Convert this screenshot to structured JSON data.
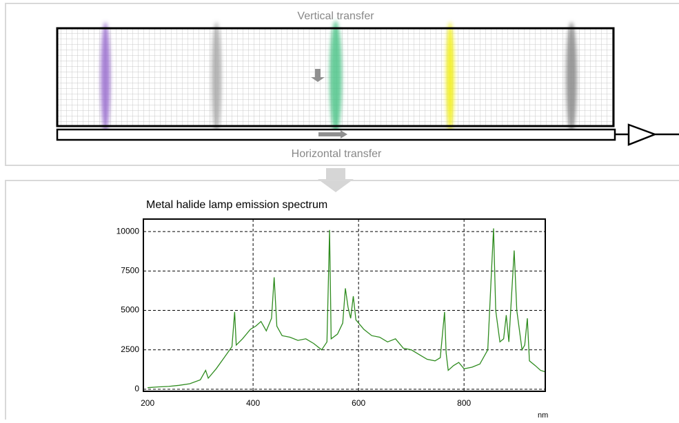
{
  "labels": {
    "vertical_transfer": "Vertical transfer",
    "horizontal_transfer": "Horizontal transfer"
  },
  "chart_data": {
    "type": "line",
    "title": "Metal halide lamp emission spectrum",
    "x_label": "nm",
    "color": "#2e8b1e",
    "xlim": [
      192,
      954
    ],
    "xticks": [
      200,
      400,
      600,
      800
    ],
    "ylim": [
      -130,
      10790
    ],
    "yticks": [
      0,
      2500,
      5000,
      7500,
      10000
    ],
    "grid": true,
    "x": [
      200,
      220,
      240,
      260,
      280,
      300,
      310,
      315,
      330,
      345,
      360,
      365,
      368,
      380,
      395,
      405,
      415,
      425,
      435,
      440,
      445,
      455,
      470,
      485,
      500,
      515,
      530,
      540,
      545,
      548,
      560,
      570,
      575,
      580,
      585,
      590,
      595,
      610,
      625,
      640,
      655,
      670,
      685,
      700,
      715,
      730,
      745,
      755,
      763,
      766,
      770,
      780,
      790,
      800,
      815,
      830,
      845,
      852,
      856,
      860,
      868,
      875,
      880,
      885,
      895,
      900,
      910,
      915,
      920,
      924,
      935,
      945,
      954
    ],
    "values": [
      100,
      150,
      180,
      250,
      350,
      600,
      1200,
      700,
      1300,
      2000,
      2700,
      4900,
      2800,
      3200,
      3800,
      4000,
      4300,
      3700,
      4500,
      7100,
      4000,
      3400,
      3300,
      3100,
      3200,
      2900,
      2500,
      3000,
      10100,
      3200,
      3500,
      4200,
      6400,
      5200,
      4500,
      5900,
      4400,
      3800,
      3400,
      3300,
      3000,
      3200,
      2600,
      2500,
      2200,
      1900,
      1800,
      2000,
      4900,
      2300,
      1200,
      1500,
      1700,
      1300,
      1400,
      1600,
      2500,
      7500,
      10200,
      5000,
      3000,
      3200,
      4700,
      3000,
      8800,
      5000,
      2500,
      2800,
      4500,
      1800,
      1500,
      1200,
      1100
    ]
  }
}
